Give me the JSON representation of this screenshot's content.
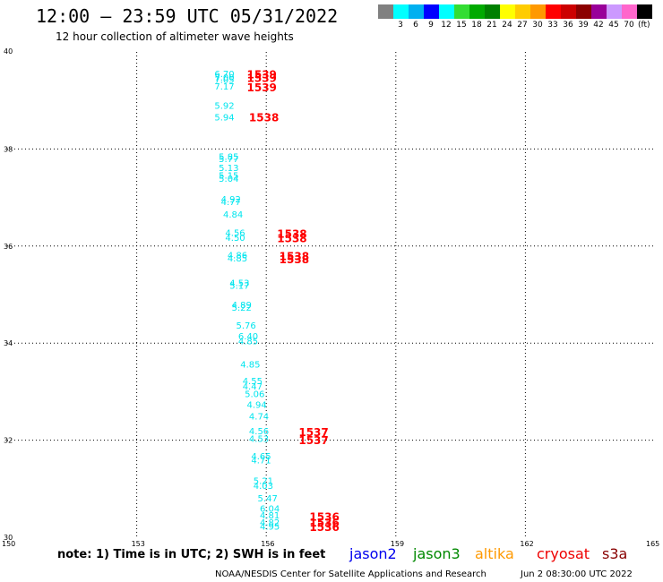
{
  "header": {
    "title": "12:00 – 23:59 UTC 05/31/2022",
    "subtitle": "12 hour collection of altimeter wave heights"
  },
  "color_scale": {
    "colors": [
      "#808080",
      "#00ffff",
      "#00b0f0",
      "#0000ff",
      "#00ffff",
      "#33dd33",
      "#00aa00",
      "#008000",
      "#ffff00",
      "#ffcc00",
      "#ff9900",
      "#ff0000",
      "#cc0000",
      "#8b0000",
      "#990099",
      "#cc99ff",
      "#ff66cc",
      "#000000"
    ],
    "labels": [
      "3",
      "6",
      "9",
      "12",
      "15",
      "18",
      "21",
      "24",
      "27",
      "30",
      "33",
      "36",
      "39",
      "42",
      "45",
      "70"
    ],
    "unit": "(ft)"
  },
  "chart_data": {
    "type": "scatter",
    "xlim": [
      150,
      165
    ],
    "ylim": [
      30,
      40
    ],
    "x_ticks": [
      "150",
      "153",
      "156",
      "159",
      "162",
      "165"
    ],
    "y_ticks": [
      "40",
      "38",
      "36",
      "34",
      "32",
      "30"
    ],
    "grid": true,
    "series": [
      {
        "name": "s3a",
        "color": "#00e5ee",
        "points": [
          {
            "x": 154.8,
            "y": 39.56,
            "label": "6.70"
          },
          {
            "x": 154.8,
            "y": 39.48,
            "label": "7.00"
          },
          {
            "x": 154.8,
            "y": 39.44,
            "label": "7.05"
          },
          {
            "x": 154.8,
            "y": 39.3,
            "label": "7.17"
          },
          {
            "x": 154.8,
            "y": 38.9,
            "label": "5.92"
          },
          {
            "x": 154.8,
            "y": 38.66,
            "label": "5.94"
          },
          {
            "x": 154.9,
            "y": 37.85,
            "label": "5.85"
          },
          {
            "x": 154.9,
            "y": 37.8,
            "label": "5.77"
          },
          {
            "x": 154.9,
            "y": 37.62,
            "label": "5.13"
          },
          {
            "x": 154.9,
            "y": 37.46,
            "label": "5.15"
          },
          {
            "x": 154.9,
            "y": 37.4,
            "label": "5.04"
          },
          {
            "x": 154.95,
            "y": 36.97,
            "label": "4.92"
          },
          {
            "x": 154.95,
            "y": 36.92,
            "label": "4.77"
          },
          {
            "x": 155.0,
            "y": 36.66,
            "label": "4.84"
          },
          {
            "x": 155.05,
            "y": 36.28,
            "label": "4.56"
          },
          {
            "x": 155.05,
            "y": 36.18,
            "label": "4.50"
          },
          {
            "x": 155.1,
            "y": 35.82,
            "label": "4.86"
          },
          {
            "x": 155.1,
            "y": 35.76,
            "label": "4.85"
          },
          {
            "x": 155.15,
            "y": 35.25,
            "label": "4.53"
          },
          {
            "x": 155.15,
            "y": 35.19,
            "label": "5.17"
          },
          {
            "x": 155.2,
            "y": 34.8,
            "label": "4.89"
          },
          {
            "x": 155.2,
            "y": 34.74,
            "label": "5.22"
          },
          {
            "x": 155.3,
            "y": 34.37,
            "label": "5.76"
          },
          {
            "x": 155.35,
            "y": 34.15,
            "label": "6.40"
          },
          {
            "x": 155.35,
            "y": 34.05,
            "label": "4.85"
          },
          {
            "x": 155.4,
            "y": 33.57,
            "label": "4.85"
          },
          {
            "x": 155.45,
            "y": 33.23,
            "label": "4.55"
          },
          {
            "x": 155.45,
            "y": 33.12,
            "label": "4.47"
          },
          {
            "x": 155.5,
            "y": 32.96,
            "label": "5.06"
          },
          {
            "x": 155.55,
            "y": 32.74,
            "label": "4.94"
          },
          {
            "x": 155.6,
            "y": 32.5,
            "label": "4.74"
          },
          {
            "x": 155.6,
            "y": 32.2,
            "label": "4.56"
          },
          {
            "x": 155.6,
            "y": 32.04,
            "label": "4.53"
          },
          {
            "x": 155.65,
            "y": 31.68,
            "label": "4.65"
          },
          {
            "x": 155.65,
            "y": 31.6,
            "label": "4.71"
          },
          {
            "x": 155.7,
            "y": 31.17,
            "label": "5.21"
          },
          {
            "x": 155.7,
            "y": 31.07,
            "label": "4.03"
          },
          {
            "x": 155.8,
            "y": 30.81,
            "label": "5.47"
          },
          {
            "x": 155.85,
            "y": 30.6,
            "label": "6.04"
          },
          {
            "x": 155.85,
            "y": 30.46,
            "label": "4.81"
          },
          {
            "x": 155.85,
            "y": 30.31,
            "label": "4.82"
          },
          {
            "x": 155.85,
            "y": 30.23,
            "label": "4.95"
          }
        ]
      },
      {
        "name": "cryosat",
        "color": "#ff0000",
        "points": [
          {
            "x": 155.55,
            "y": 39.55,
            "label": "1539"
          },
          {
            "x": 155.55,
            "y": 39.47,
            "label": "1539"
          },
          {
            "x": 155.55,
            "y": 39.28,
            "label": "1539"
          },
          {
            "x": 155.6,
            "y": 38.66,
            "label": "1538"
          },
          {
            "x": 156.25,
            "y": 36.26,
            "label": "1538"
          },
          {
            "x": 156.25,
            "y": 36.17,
            "label": "1538"
          },
          {
            "x": 156.3,
            "y": 35.8,
            "label": "1538"
          },
          {
            "x": 156.3,
            "y": 35.74,
            "label": "1538"
          },
          {
            "x": 156.75,
            "y": 32.18,
            "label": "1537"
          },
          {
            "x": 156.75,
            "y": 32.01,
            "label": "1537"
          },
          {
            "x": 157.0,
            "y": 30.43,
            "label": "1536"
          },
          {
            "x": 157.0,
            "y": 30.31,
            "label": "1536"
          },
          {
            "x": 157.0,
            "y": 30.22,
            "label": "1536"
          }
        ]
      }
    ]
  },
  "footer": {
    "note": "note: 1) Time is in UTC; 2) SWH is in feet",
    "satellites": [
      {
        "label": "jason2",
        "color": "#0000ee"
      },
      {
        "label": "jason3",
        "color": "#008800"
      },
      {
        "label": "altika",
        "color": "#ff9900"
      },
      {
        "label": "cryosat",
        "color": "#ee0000"
      },
      {
        "label": "s3a",
        "color": "#880000"
      }
    ],
    "credit": "NOAA/NESDIS Center for Satellite Applications and Research",
    "timestamp": "Jun  2 08:30:00 UTC 2022"
  }
}
